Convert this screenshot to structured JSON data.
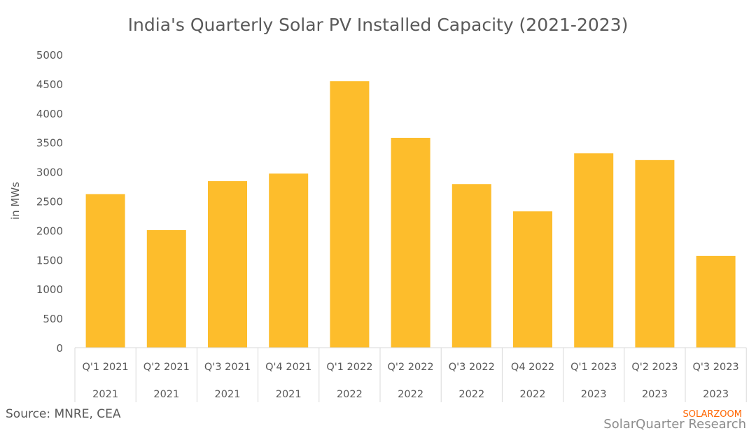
{
  "chart_data": {
    "type": "bar",
    "title": "India's Quarterly Solar PV Installed Capacity (2021-2023)",
    "ylabel": "in MWs",
    "xlabel": "",
    "ylim": [
      0,
      5000
    ],
    "yticks": [
      0,
      500,
      1000,
      1500,
      2000,
      2500,
      3000,
      3500,
      4000,
      4500,
      5000
    ],
    "grid": false,
    "categories": [
      "Q'1 2021",
      "Q'2 2021",
      "Q'3 2021",
      "Q'4 2021",
      "Q'1 2022",
      "Q'2 2022",
      "Q'3 2022",
      "Q4 2022",
      "Q'1 2023",
      "Q'2 2023",
      "Q'3 2023"
    ],
    "category_groups": [
      "2021",
      "2021",
      "2021",
      "2021",
      "2022",
      "2022",
      "2022",
      "2022",
      "2023",
      "2023",
      "2023"
    ],
    "values": [
      2620,
      2005,
      2840,
      2970,
      4545,
      3580,
      2790,
      2325,
      3315,
      3200,
      1565
    ],
    "bar_color": "#FDBD2C"
  },
  "source": "Source: MNRE, CEA",
  "credit": "SolarQuarter Research",
  "watermark": "SOLARZOOM"
}
